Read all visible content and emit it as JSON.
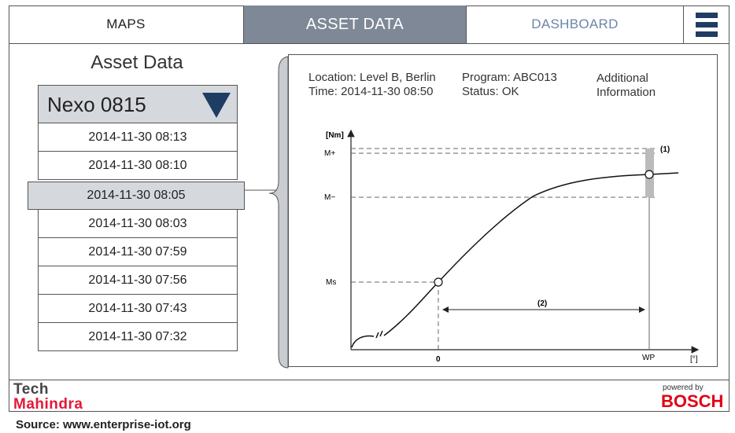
{
  "nav": {
    "tabs": [
      {
        "label": "MAPS"
      },
      {
        "label": "ASSET DATA"
      },
      {
        "label": "DASHBOARD"
      }
    ],
    "menu_icon": "hamburger-menu-icon",
    "active_color": "#7f8896",
    "accent_color": "#1f3d63"
  },
  "asset": {
    "title": "Asset Data",
    "selector_value": "Nexo 0815",
    "timestamps": [
      "2014-11-30 08:13",
      "2014-11-30 08:10",
      "2014-11-30 08:05",
      "2014-11-30 08:03",
      "2014-11-30 07:59",
      "2014-11-30 07:56",
      "2014-11-30 07:43",
      "2014-11-30 07:32"
    ],
    "selected_index": 2
  },
  "detail": {
    "location": "Location: Level B, Berlin",
    "time": "Time: 2014-11-30 08:50",
    "program": "Program: ABC013",
    "status": "Status: OK",
    "additional_1": "Additional",
    "additional_2": "Information"
  },
  "chart_data": {
    "type": "line",
    "y_unit_label": "[Nm]",
    "x_unit_label": "[°]",
    "y_ticks": [
      "M+",
      "M−",
      "Ms"
    ],
    "x_ticks": [
      "0",
      "WP"
    ],
    "annotations": [
      "(1)",
      "(2)"
    ],
    "grid": false
  },
  "footer": {
    "brand_line1": "Tech",
    "brand_line2": "Mahindra",
    "powered_by": "powered by",
    "partner": "BOSCH",
    "source": "Source: www.enterprise-iot.org"
  }
}
